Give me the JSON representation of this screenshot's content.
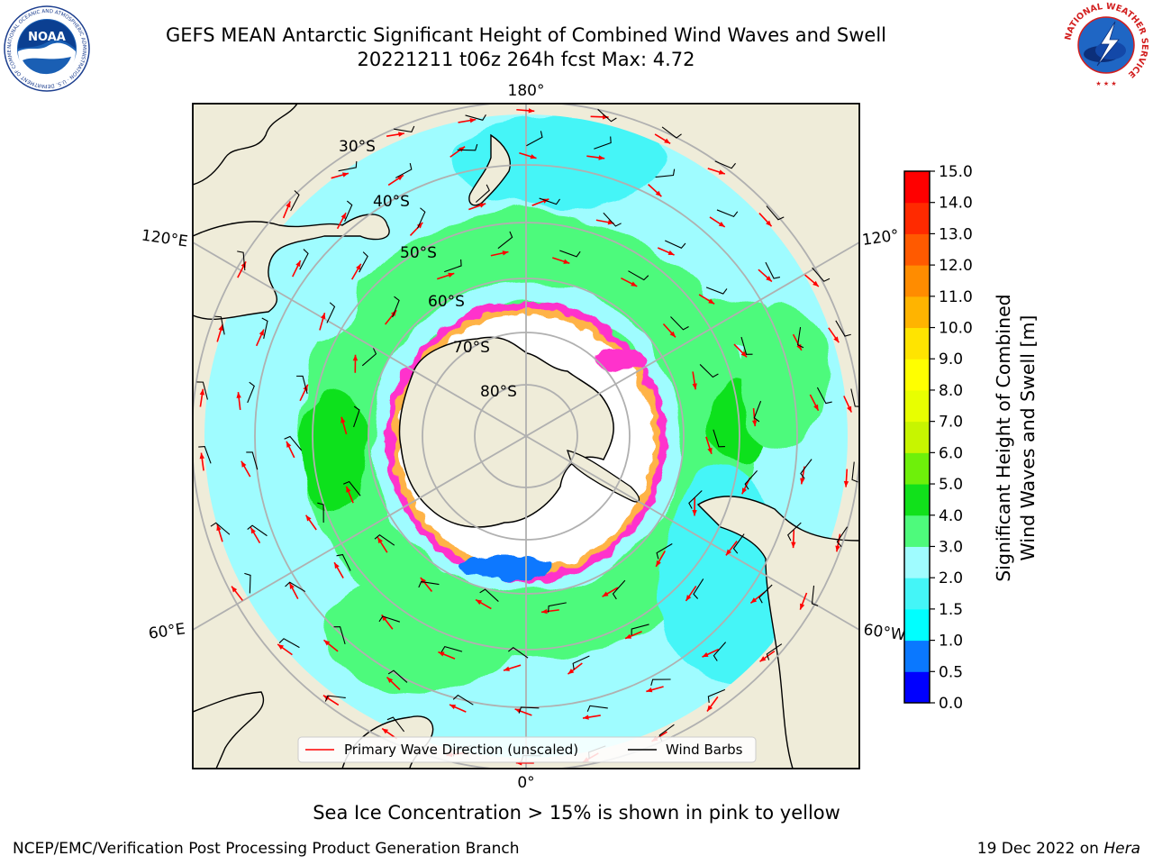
{
  "title": {
    "line1": "GEFS MEAN Antarctic Significant Height of Combined Wind Waves and Swell",
    "line2": "20221211 t06z 264h fcst   Max: 4.72"
  },
  "map": {
    "projection": "south-polar-stereographic",
    "longitude_labels": {
      "top": "180°",
      "bottom": "0°",
      "left_upper": "120°E",
      "left_lower": "60°E",
      "right_upper": "120°",
      "right_lower": "60°W"
    },
    "latitude_labels": [
      "30°S",
      "40°S",
      "50°S",
      "60°S",
      "70°S",
      "80°S"
    ],
    "colors": {
      "land": "#efecd9",
      "ice_white": "#ffffff",
      "ice_pink": "#ff33cc",
      "ice_orange": "#ffb347",
      "wave_1_5_2": "#44f5f7",
      "wave_2_3": "#9ffcff",
      "wave_3_4": "#4efa7c",
      "wave_4_5": "#11e11b",
      "arrow": "#ff0000",
      "barb": "#000000",
      "grid": "#b0b0b0"
    }
  },
  "legend": {
    "primary_wave": "Primary Wave Direction (unscaled)",
    "wind_barbs": "Wind Barbs"
  },
  "colorbar": {
    "label_line1": "Significant Height of Combined",
    "label_line2": "Wind Waves and Swell [m]",
    "ticks": [
      "0.0",
      "0.5",
      "1.0",
      "1.5",
      "2.0",
      "3.0",
      "4.0",
      "5.0",
      "6.0",
      "7.0",
      "8.0",
      "9.0",
      "10.0",
      "11.0",
      "12.0",
      "13.0",
      "14.0",
      "15.0"
    ],
    "colors": [
      "#0000ff",
      "#0a78ff",
      "#00ffff",
      "#44f5f7",
      "#9ffcff",
      "#4efa7c",
      "#11e11b",
      "#6ef00a",
      "#c7f500",
      "#e8ff00",
      "#ffff00",
      "#ffe400",
      "#ffb400",
      "#ff8c00",
      "#ff5a00",
      "#ff2a00",
      "#ff0000"
    ]
  },
  "caption": "Sea Ice Concentration > 15% is shown in pink to yellow",
  "footer": {
    "left": "NCEP/EMC/Verification Post Processing Product Generation Branch",
    "right_date": "19 Dec 2022 on ",
    "right_host": "Hera"
  },
  "logos": {
    "noaa_text": "NOAA",
    "noaa_ring": "NATIONAL OCEANIC AND ATMOSPHERIC ADMINISTRATION · U.S. DEPARTMENT OF COMMERCE",
    "nws_ring": "NATIONAL WEATHER SERVICE"
  }
}
